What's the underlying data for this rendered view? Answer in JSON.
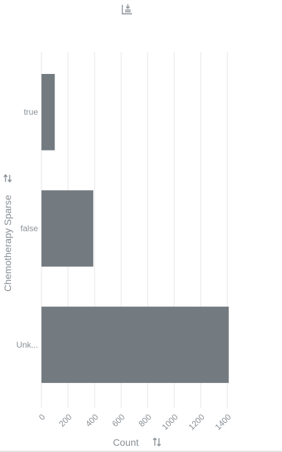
{
  "toolbar": {
    "download_icon": "download-chart-icon"
  },
  "chart_data": {
    "type": "bar",
    "orientation": "horizontal",
    "categories": [
      "true",
      "false",
      "Unk..."
    ],
    "values": [
      100,
      390,
      1410
    ],
    "xlabel": "Count",
    "ylabel": "Chemotherapy Sparse",
    "xlim": [
      0,
      1400
    ],
    "xticks": [
      "0",
      "200",
      "400",
      "600",
      "800",
      "1000",
      "1200",
      "1400"
    ],
    "xtick_values": [
      0,
      200,
      400,
      600,
      800,
      1000,
      1200,
      1400
    ],
    "grid": true,
    "bar_color": "#737a80",
    "sort_icons": [
      "swap-axis-icon",
      "sort-icon"
    ]
  }
}
